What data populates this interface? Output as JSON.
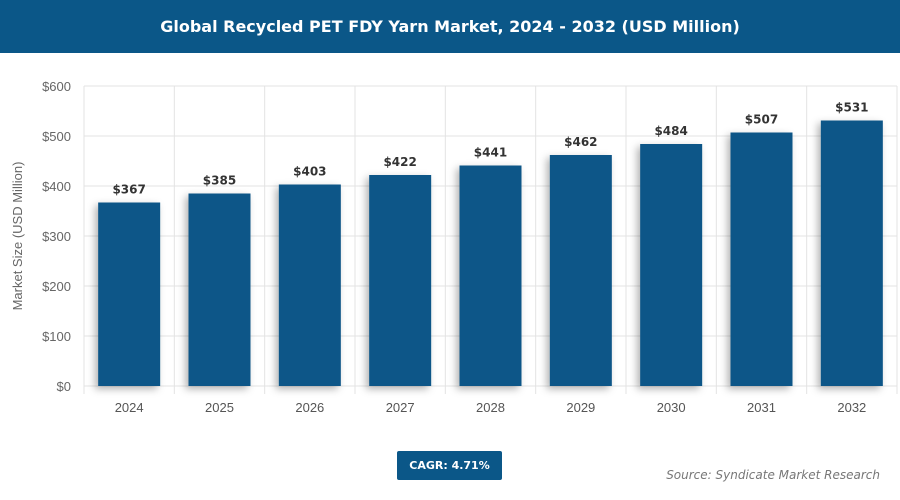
{
  "chart_data": {
    "type": "bar",
    "title": "Global Recycled PET FDY Yarn Market, 2024 - 2032 (USD Million)",
    "xlabel": "",
    "ylabel": "Market Size (USD Million)",
    "categories": [
      "2024",
      "2025",
      "2026",
      "2027",
      "2028",
      "2029",
      "2030",
      "2031",
      "2032"
    ],
    "values": [
      367,
      385,
      403,
      422,
      441,
      462,
      484,
      507,
      531
    ],
    "data_labels": [
      "$367",
      "$385",
      "$403",
      "$422",
      "$441",
      "$462",
      "$484",
      "$507",
      "$531"
    ],
    "ylim": [
      0,
      600
    ],
    "yticks": [
      0,
      100,
      200,
      300,
      400,
      500,
      600
    ],
    "ytick_labels": [
      "$0",
      "$100",
      "$200",
      "$300",
      "$400",
      "$500",
      "$600"
    ],
    "grid": true,
    "bar_color": "#0b5788"
  },
  "cagr_label": "CAGR: 4.71%",
  "source": "Source: Syndicate Market Research"
}
